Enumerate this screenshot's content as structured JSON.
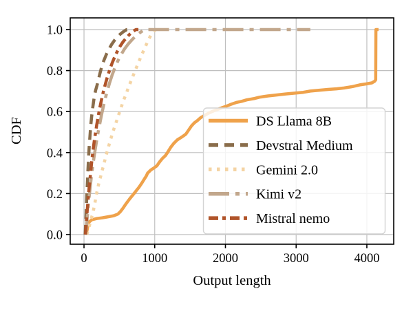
{
  "figure": {
    "kind": "matplotlib-style CDF plot",
    "background": "#ffffff",
    "grid_color": "#bfbfbf",
    "spine_color": "#000000",
    "legend_border_color": "#d4d4d4"
  },
  "chart_data": {
    "type": "line",
    "subtype": "empirical-cdf",
    "title": "",
    "xlabel": "Output length",
    "ylabel": "CDF",
    "xlim": [
      -195,
      4380
    ],
    "ylim": [
      -0.047,
      1.057
    ],
    "xticks": [
      0,
      1000,
      2000,
      3000,
      4000
    ],
    "xtick_labels": [
      "0",
      "1000",
      "2000",
      "3000",
      "4000"
    ],
    "yticks": [
      0.0,
      0.2,
      0.4,
      0.6,
      0.8,
      1.0
    ],
    "ytick_labels": [
      "0.0",
      "0.2",
      "0.4",
      "0.6",
      "0.8",
      "1.0"
    ],
    "grid": true,
    "legend_position": "lower right",
    "series": [
      {
        "name": "DS Llama 8B",
        "color": "#EFA24B",
        "linestyle": "solid",
        "points": [
          [
            30,
            0
          ],
          [
            38,
            0.012
          ],
          [
            48,
            0.03
          ],
          [
            58,
            0.05
          ],
          [
            75,
            0.062
          ],
          [
            110,
            0.072
          ],
          [
            180,
            0.078
          ],
          [
            260,
            0.082
          ],
          [
            340,
            0.087
          ],
          [
            420,
            0.092
          ],
          [
            480,
            0.1
          ],
          [
            515,
            0.112
          ],
          [
            555,
            0.13
          ],
          [
            590,
            0.148
          ],
          [
            615,
            0.16
          ],
          [
            655,
            0.178
          ],
          [
            695,
            0.195
          ],
          [
            730,
            0.21
          ],
          [
            775,
            0.23
          ],
          [
            815,
            0.25
          ],
          [
            855,
            0.272
          ],
          [
            880,
            0.285
          ],
          [
            900,
            0.3
          ],
          [
            945,
            0.315
          ],
          [
            990,
            0.325
          ],
          [
            1030,
            0.335
          ],
          [
            1070,
            0.355
          ],
          [
            1110,
            0.372
          ],
          [
            1150,
            0.385
          ],
          [
            1180,
            0.4
          ],
          [
            1225,
            0.425
          ],
          [
            1270,
            0.445
          ],
          [
            1320,
            0.462
          ],
          [
            1380,
            0.475
          ],
          [
            1440,
            0.49
          ],
          [
            1480,
            0.51
          ],
          [
            1520,
            0.53
          ],
          [
            1560,
            0.545
          ],
          [
            1600,
            0.555
          ],
          [
            1650,
            0.57
          ],
          [
            1700,
            0.58
          ],
          [
            1760,
            0.592
          ],
          [
            1830,
            0.603
          ],
          [
            1900,
            0.612
          ],
          [
            1960,
            0.62
          ],
          [
            2020,
            0.627
          ],
          [
            2090,
            0.637
          ],
          [
            2160,
            0.645
          ],
          [
            2230,
            0.65
          ],
          [
            2300,
            0.657
          ],
          [
            2400,
            0.663
          ],
          [
            2480,
            0.67
          ],
          [
            2600,
            0.676
          ],
          [
            2720,
            0.681
          ],
          [
            2850,
            0.686
          ],
          [
            2980,
            0.69
          ],
          [
            3100,
            0.694
          ],
          [
            3200,
            0.7
          ],
          [
            3320,
            0.704
          ],
          [
            3450,
            0.708
          ],
          [
            3570,
            0.711
          ],
          [
            3680,
            0.715
          ],
          [
            3800,
            0.722
          ],
          [
            3900,
            0.73
          ],
          [
            3990,
            0.735
          ],
          [
            4070,
            0.74
          ],
          [
            4110,
            0.748
          ],
          [
            4125,
            0.755
          ],
          [
            4128,
            1.0
          ],
          [
            4165,
            1.0
          ]
        ]
      },
      {
        "name": "Devstral Medium",
        "color": "#8A6D4B",
        "linestyle": "dashed",
        "points": [
          [
            15,
            0
          ],
          [
            22,
            0.04
          ],
          [
            30,
            0.1
          ],
          [
            38,
            0.17
          ],
          [
            46,
            0.24
          ],
          [
            55,
            0.31
          ],
          [
            64,
            0.37
          ],
          [
            74,
            0.43
          ],
          [
            84,
            0.48
          ],
          [
            95,
            0.53
          ],
          [
            108,
            0.575
          ],
          [
            122,
            0.615
          ],
          [
            136,
            0.65
          ],
          [
            150,
            0.68
          ],
          [
            165,
            0.705
          ],
          [
            180,
            0.722
          ],
          [
            200,
            0.75
          ],
          [
            225,
            0.785
          ],
          [
            252,
            0.82
          ],
          [
            282,
            0.85
          ],
          [
            315,
            0.878
          ],
          [
            350,
            0.903
          ],
          [
            390,
            0.927
          ],
          [
            432,
            0.948
          ],
          [
            475,
            0.965
          ],
          [
            515,
            0.978
          ],
          [
            550,
            0.988
          ],
          [
            580,
            0.995
          ],
          [
            605,
            1.0
          ],
          [
            640,
            1.0
          ]
        ]
      },
      {
        "name": "Gemini 2.0",
        "color": "#F4D4A4",
        "linestyle": "dotted",
        "points": [
          [
            40,
            0
          ],
          [
            58,
            0.02
          ],
          [
            78,
            0.045
          ],
          [
            100,
            0.075
          ],
          [
            125,
            0.105
          ],
          [
            150,
            0.145
          ],
          [
            175,
            0.195
          ],
          [
            205,
            0.243
          ],
          [
            240,
            0.29
          ],
          [
            278,
            0.34
          ],
          [
            315,
            0.39
          ],
          [
            352,
            0.435
          ],
          [
            392,
            0.482
          ],
          [
            432,
            0.525
          ],
          [
            472,
            0.565
          ],
          [
            515,
            0.61
          ],
          [
            560,
            0.655
          ],
          [
            610,
            0.7
          ],
          [
            660,
            0.745
          ],
          [
            712,
            0.79
          ],
          [
            765,
            0.835
          ],
          [
            818,
            0.878
          ],
          [
            868,
            0.917
          ],
          [
            912,
            0.95
          ],
          [
            950,
            0.975
          ],
          [
            985,
            0.992
          ],
          [
            1015,
            1.0
          ],
          [
            1050,
            1.0
          ]
        ]
      },
      {
        "name": "Kimi v2",
        "color": "#C2A78C",
        "linestyle": "longdashdot",
        "points": [
          [
            25,
            0
          ],
          [
            35,
            0.04
          ],
          [
            47,
            0.09
          ],
          [
            60,
            0.14
          ],
          [
            75,
            0.19
          ],
          [
            92,
            0.245
          ],
          [
            110,
            0.3
          ],
          [
            130,
            0.35
          ],
          [
            152,
            0.4
          ],
          [
            175,
            0.45
          ],
          [
            200,
            0.5
          ],
          [
            228,
            0.55
          ],
          [
            258,
            0.6
          ],
          [
            290,
            0.648
          ],
          [
            324,
            0.695
          ],
          [
            360,
            0.738
          ],
          [
            398,
            0.778
          ],
          [
            438,
            0.815
          ],
          [
            480,
            0.848
          ],
          [
            525,
            0.878
          ],
          [
            572,
            0.905
          ],
          [
            622,
            0.928
          ],
          [
            675,
            0.949
          ],
          [
            730,
            0.968
          ],
          [
            790,
            0.985
          ],
          [
            830,
            0.994
          ],
          [
            860,
            1.0
          ],
          [
            3200,
            1.0
          ]
        ]
      },
      {
        "name": "Mistral nemo",
        "color": "#B0542A",
        "linestyle": "dashdot",
        "points": [
          [
            20,
            0
          ],
          [
            28,
            0.035
          ],
          [
            37,
            0.08
          ],
          [
            48,
            0.13
          ],
          [
            60,
            0.18
          ],
          [
            73,
            0.23
          ],
          [
            87,
            0.28
          ],
          [
            100,
            0.325
          ],
          [
            114,
            0.37
          ],
          [
            129,
            0.415
          ],
          [
            145,
            0.455
          ],
          [
            162,
            0.495
          ],
          [
            180,
            0.535
          ],
          [
            200,
            0.575
          ],
          [
            222,
            0.615
          ],
          [
            246,
            0.655
          ],
          [
            272,
            0.695
          ],
          [
            300,
            0.732
          ],
          [
            330,
            0.768
          ],
          [
            362,
            0.802
          ],
          [
            396,
            0.835
          ],
          [
            432,
            0.865
          ],
          [
            470,
            0.893
          ],
          [
            510,
            0.918
          ],
          [
            552,
            0.94
          ],
          [
            596,
            0.959
          ],
          [
            640,
            0.975
          ],
          [
            680,
            0.987
          ],
          [
            715,
            0.996
          ],
          [
            735,
            1.0
          ],
          [
            770,
            1.0
          ]
        ]
      }
    ]
  }
}
